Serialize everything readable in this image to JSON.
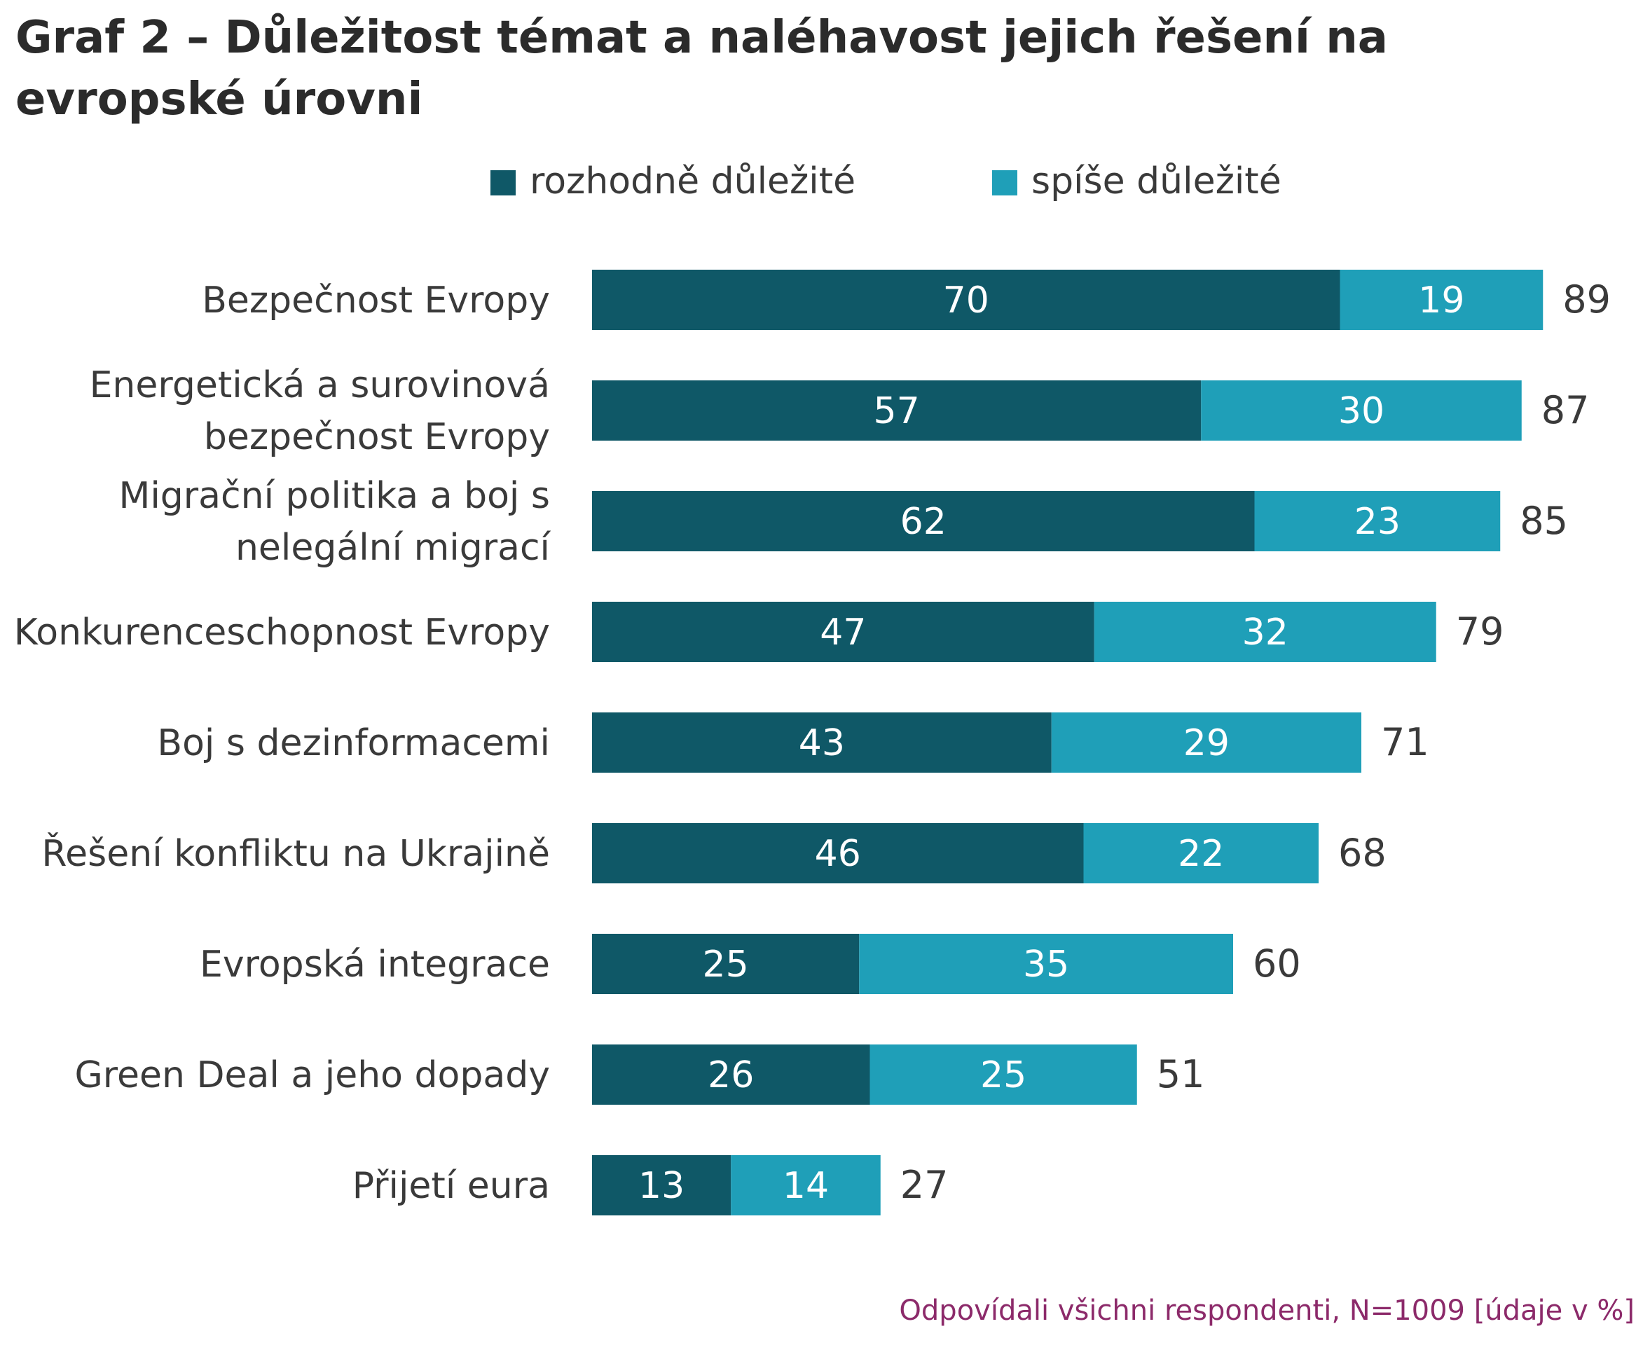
{
  "title": "Graf 2 – Důležitost témat a naléhavost jejich  řešení na evropské úrovni",
  "note": "Odpovídali všichni respondenti, N=1009 [údaje v %]",
  "colors": {
    "dark": "#0f5867",
    "light": "#1f9fb8",
    "text": "#3a3a3a",
    "note": "#8c2a6a"
  },
  "chart_data": {
    "type": "bar",
    "orientation": "horizontal",
    "stacked": true,
    "legend_position": "top",
    "categories": [
      [
        "Bezpečnost Evropy"
      ],
      [
        "Energetická a surovinová",
        "bezpečnost Evropy"
      ],
      [
        "Migrační politika a boj s",
        "nelegální migrací"
      ],
      [
        "Konkurenceschopnost Evropy"
      ],
      [
        "Boj s dezinformacemi"
      ],
      [
        "Řešení konfliktu na Ukrajině"
      ],
      [
        "Evropská integrace"
      ],
      [
        "Green Deal a jeho dopady"
      ],
      [
        "Přijetí eura"
      ]
    ],
    "series": [
      {
        "name": "rozhodně důležité",
        "color": "#0f5867",
        "values": [
          70,
          57,
          62,
          47,
          43,
          46,
          25,
          26,
          13
        ]
      },
      {
        "name": "spíše důležité",
        "color": "#1f9fb8",
        "values": [
          19,
          30,
          23,
          32,
          29,
          22,
          35,
          25,
          14
        ]
      }
    ],
    "totals": [
      89,
      87,
      85,
      79,
      71,
      68,
      60,
      51,
      27
    ],
    "xlim": [
      0,
      100
    ],
    "grid": false
  }
}
